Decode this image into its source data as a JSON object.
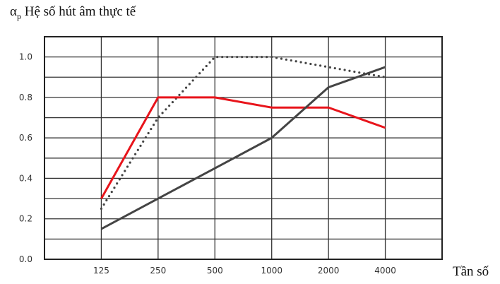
{
  "chart_data": {
    "type": "line",
    "title_symbol": "α",
    "title_subscript": "p",
    "title": "Hệ số hút âm thực tế",
    "xlabel": "Tần số",
    "ylabel": "",
    "categories": [
      "125",
      "250",
      "500",
      "1000",
      "2000",
      "4000"
    ],
    "ylim": [
      0,
      1.1
    ],
    "yticks": [
      "0.0",
      "0.2",
      "0.4",
      "0.6",
      "0.8",
      "1.0"
    ],
    "ytick_values": [
      0,
      0.2,
      0.4,
      0.6,
      0.8,
      1.0
    ],
    "grid": true,
    "series": [
      {
        "name": "dotted",
        "style": "dotted",
        "color": "#444444",
        "values": [
          0.25,
          0.7,
          1.0,
          1.0,
          0.95,
          0.9
        ]
      },
      {
        "name": "red",
        "style": "solid",
        "color": "#e8141b",
        "values": [
          0.3,
          0.8,
          0.8,
          0.75,
          0.75,
          0.65
        ]
      },
      {
        "name": "gray",
        "style": "solid",
        "color": "#444444",
        "values": [
          0.15,
          0.3,
          0.45,
          0.6,
          0.85,
          0.95
        ]
      }
    ]
  }
}
